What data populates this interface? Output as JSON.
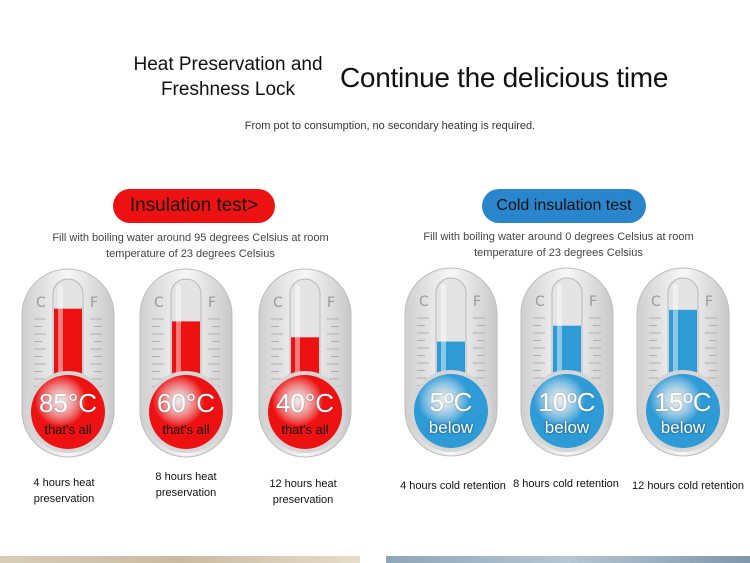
{
  "header": {
    "title_line1": "Heat Preservation and",
    "title_line2": "Freshness Lock",
    "tagline": "Continue the delicious time",
    "subtitle": "From pot to consumption, no secondary heating is required."
  },
  "hot_section": {
    "badge": "Insulation test>",
    "description": "Fill with boiling water around 95 degrees Celsius at room temperature of 23 degrees Celsius",
    "fill_color": "#ee1111",
    "thermometers": [
      {
        "temp": "85°C",
        "note": "that's all",
        "caption": "4 hours heat preservation",
        "fill_level": 0.72
      },
      {
        "temp": "60°C",
        "note": "that's all",
        "caption": "8 hours heat preservation",
        "fill_level": 0.6
      },
      {
        "temp": "40°C",
        "note": "that's all",
        "caption": "12 hours heat preservation",
        "fill_level": 0.45
      }
    ]
  },
  "cold_section": {
    "badge": "Cold insulation test",
    "description": "Fill with boiling water around 0 degrees Celsius at room temperature of 23 degrees Celsius",
    "fill_color": "#2e9ad6",
    "thermometers": [
      {
        "temp": "5ºC",
        "note": "below",
        "caption": "4 hours cold retention",
        "fill_level": 0.4
      },
      {
        "temp": "10ºC",
        "note": "below",
        "caption": "8 hours cold retention",
        "fill_level": 0.55
      },
      {
        "temp": "15ºC",
        "note": "below",
        "caption": "12 hours cold retention",
        "fill_level": 0.7
      }
    ]
  },
  "scale_labels": {
    "left": "C",
    "right": "F"
  }
}
